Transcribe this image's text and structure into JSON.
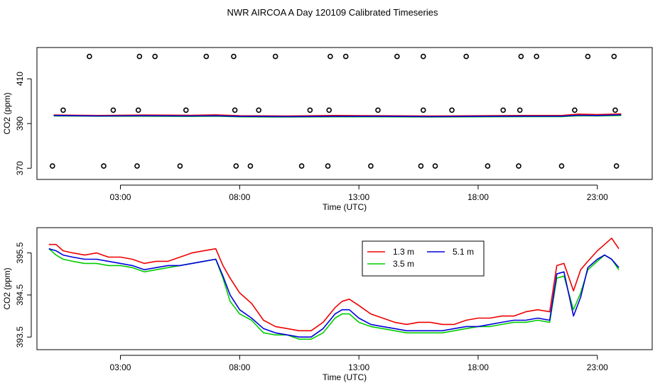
{
  "figure": {
    "title": "NWR AIRCOA A  Day 120109  Calibrated Timeseries"
  },
  "chart_data": [
    {
      "type": "line",
      "title": "",
      "xlabel": "Time (UTC)",
      "ylabel": "CO2 (ppm)",
      "xlim": [
        -0.5,
        25.3
      ],
      "ylim": [
        365,
        424
      ],
      "x_ticks": [
        {
          "value": 3,
          "label": "03:00"
        },
        {
          "value": 8,
          "label": "08:00"
        },
        {
          "value": 13,
          "label": "13:00"
        },
        {
          "value": 18,
          "label": "18:00"
        },
        {
          "value": 23,
          "label": "23:00"
        }
      ],
      "y_ticks": [
        {
          "value": 370,
          "label": "370"
        },
        {
          "value": 390,
          "label": "390"
        },
        {
          "value": 410,
          "label": "410"
        }
      ],
      "series": [
        {
          "name": "1.3 m",
          "color": "#ee0000",
          "x": [
            0.2,
            2,
            4,
            6,
            7,
            8,
            10,
            12,
            14,
            16,
            18,
            20,
            21.5,
            22.2,
            23,
            24
          ],
          "values": [
            393.8,
            393.6,
            393.8,
            393.7,
            393.9,
            393.5,
            393.4,
            393.6,
            393.5,
            393.4,
            393.5,
            393.6,
            393.6,
            394.2,
            394.0,
            394.3
          ]
        },
        {
          "name": "3.5 m",
          "color": "#00cc00",
          "x": [
            0.2,
            2,
            4,
            6,
            7,
            8,
            10,
            12,
            14,
            16,
            18,
            20,
            21.5,
            22.2,
            23,
            24
          ],
          "values": [
            393.4,
            393.3,
            393.3,
            393.2,
            393.3,
            393.0,
            392.9,
            393.0,
            393.0,
            392.9,
            393.0,
            393.1,
            393.1,
            393.5,
            393.4,
            393.6
          ]
        },
        {
          "name": "5.1 m",
          "color": "#0000dd",
          "x": [
            0.2,
            2,
            4,
            6,
            7,
            8,
            10,
            12,
            14,
            16,
            18,
            20,
            21.5,
            22.2,
            23,
            24
          ],
          "values": [
            393.6,
            393.4,
            393.5,
            393.4,
            393.5,
            393.2,
            393.1,
            393.2,
            393.2,
            393.1,
            393.2,
            393.3,
            393.3,
            393.7,
            393.6,
            393.9
          ]
        }
      ],
      "calibration_points": [
        {
          "x": 1.7,
          "y": 420
        },
        {
          "x": 3.8,
          "y": 420
        },
        {
          "x": 4.45,
          "y": 420
        },
        {
          "x": 6.6,
          "y": 420
        },
        {
          "x": 7.75,
          "y": 420
        },
        {
          "x": 9.5,
          "y": 420
        },
        {
          "x": 11.8,
          "y": 420
        },
        {
          "x": 12.45,
          "y": 420
        },
        {
          "x": 14.6,
          "y": 420
        },
        {
          "x": 15.7,
          "y": 420
        },
        {
          "x": 17.5,
          "y": 420
        },
        {
          "x": 19.8,
          "y": 420
        },
        {
          "x": 20.45,
          "y": 420
        },
        {
          "x": 22.6,
          "y": 420
        },
        {
          "x": 23.7,
          "y": 420
        },
        {
          "x": 0.6,
          "y": 396
        },
        {
          "x": 2.7,
          "y": 396
        },
        {
          "x": 3.75,
          "y": 396
        },
        {
          "x": 5.75,
          "y": 396
        },
        {
          "x": 7.8,
          "y": 396
        },
        {
          "x": 8.8,
          "y": 396
        },
        {
          "x": 10.95,
          "y": 396
        },
        {
          "x": 11.75,
          "y": 396
        },
        {
          "x": 13.8,
          "y": 396
        },
        {
          "x": 15.7,
          "y": 396
        },
        {
          "x": 16.9,
          "y": 396
        },
        {
          "x": 19.05,
          "y": 396
        },
        {
          "x": 19.75,
          "y": 396
        },
        {
          "x": 22.05,
          "y": 396
        },
        {
          "x": 23.75,
          "y": 396
        },
        {
          "x": 0.15,
          "y": 371
        },
        {
          "x": 2.3,
          "y": 371
        },
        {
          "x": 3.7,
          "y": 371
        },
        {
          "x": 5.5,
          "y": 371
        },
        {
          "x": 7.85,
          "y": 371
        },
        {
          "x": 8.45,
          "y": 371
        },
        {
          "x": 10.6,
          "y": 371
        },
        {
          "x": 11.7,
          "y": 371
        },
        {
          "x": 13.5,
          "y": 371
        },
        {
          "x": 15.6,
          "y": 371
        },
        {
          "x": 16.2,
          "y": 371
        },
        {
          "x": 18.4,
          "y": 371
        },
        {
          "x": 19.7,
          "y": 371
        },
        {
          "x": 21.5,
          "y": 371
        },
        {
          "x": 23.8,
          "y": 371
        }
      ]
    },
    {
      "type": "line",
      "title": "",
      "xlabel": "Time (UTC)",
      "ylabel": "CO2 (ppm)",
      "xlim": [
        -0.5,
        25.3
      ],
      "ylim": [
        393.2,
        396.1
      ],
      "x_ticks": [
        {
          "value": 3,
          "label": "03:00"
        },
        {
          "value": 8,
          "label": "08:00"
        },
        {
          "value": 13,
          "label": "13:00"
        },
        {
          "value": 18,
          "label": "18:00"
        },
        {
          "value": 23,
          "label": "23:00"
        }
      ],
      "y_ticks": [
        {
          "value": 393.5,
          "label": "393.5"
        },
        {
          "value": 394.5,
          "label": "394.5"
        },
        {
          "value": 395.5,
          "label": "395.5"
        }
      ],
      "legend": {
        "position": "top-right",
        "entries": [
          "1.3 m",
          "5.1 m",
          "3.5 m"
        ]
      },
      "series": [
        {
          "name": "1.3 m",
          "color": "#ee0000",
          "x": [
            0.0,
            0.3,
            0.6,
            1.0,
            1.5,
            2.0,
            2.5,
            3.0,
            3.5,
            4.0,
            4.5,
            5.0,
            5.5,
            6.0,
            6.5,
            7.0,
            7.3,
            7.6,
            8.0,
            8.5,
            9.0,
            9.5,
            10.0,
            10.5,
            11.0,
            11.5,
            12.0,
            12.3,
            12.6,
            13.0,
            13.5,
            14.0,
            14.5,
            15.0,
            15.5,
            16.0,
            16.5,
            17.0,
            17.5,
            18.0,
            18.5,
            19.0,
            19.5,
            20.0,
            20.5,
            21.0,
            21.3,
            21.6,
            22.0,
            22.3,
            22.6,
            23.0,
            23.3,
            23.6,
            23.9
          ],
          "values": [
            395.7,
            395.7,
            395.55,
            395.5,
            395.45,
            395.5,
            395.4,
            395.4,
            395.35,
            395.25,
            395.3,
            395.3,
            395.4,
            395.5,
            395.55,
            395.6,
            395.2,
            394.9,
            394.55,
            394.3,
            393.9,
            393.75,
            393.7,
            393.65,
            393.65,
            393.85,
            394.2,
            394.35,
            394.4,
            394.25,
            394.05,
            393.95,
            393.85,
            393.8,
            393.85,
            393.85,
            393.8,
            393.8,
            393.9,
            393.95,
            393.95,
            394.0,
            394.0,
            394.1,
            394.15,
            394.1,
            395.2,
            395.25,
            394.6,
            395.1,
            395.3,
            395.55,
            395.7,
            395.85,
            395.6
          ]
        },
        {
          "name": "3.5 m",
          "color": "#00cc00",
          "x": [
            0.0,
            0.3,
            0.6,
            1.0,
            1.5,
            2.0,
            2.5,
            3.0,
            3.5,
            4.0,
            4.5,
            5.0,
            5.5,
            6.0,
            6.5,
            7.0,
            7.3,
            7.6,
            8.0,
            8.5,
            9.0,
            9.5,
            10.0,
            10.5,
            11.0,
            11.5,
            12.0,
            12.3,
            12.6,
            13.0,
            13.5,
            14.0,
            14.5,
            15.0,
            15.5,
            16.0,
            16.5,
            17.0,
            17.5,
            18.0,
            18.5,
            19.0,
            19.5,
            20.0,
            20.5,
            21.0,
            21.3,
            21.6,
            22.0,
            22.3,
            22.6,
            23.0,
            23.3,
            23.6,
            23.9
          ],
          "values": [
            395.6,
            395.45,
            395.35,
            395.3,
            395.25,
            395.25,
            395.2,
            395.2,
            395.15,
            395.05,
            395.1,
            395.15,
            395.2,
            395.25,
            395.3,
            395.35,
            394.9,
            394.35,
            394.05,
            393.9,
            393.6,
            393.55,
            393.55,
            393.45,
            393.45,
            393.6,
            393.95,
            394.05,
            394.05,
            393.85,
            393.75,
            393.7,
            393.65,
            393.6,
            393.6,
            393.6,
            393.6,
            393.65,
            393.7,
            393.75,
            393.75,
            393.8,
            393.85,
            393.85,
            393.9,
            393.85,
            394.9,
            394.95,
            394.15,
            394.55,
            395.1,
            395.3,
            395.45,
            395.35,
            395.1
          ]
        },
        {
          "name": "5.1 m",
          "color": "#0000dd",
          "x": [
            0.0,
            0.3,
            0.6,
            1.0,
            1.5,
            2.0,
            2.5,
            3.0,
            3.5,
            4.0,
            4.5,
            5.0,
            5.5,
            6.0,
            6.5,
            7.0,
            7.3,
            7.6,
            8.0,
            8.5,
            9.0,
            9.5,
            10.0,
            10.5,
            11.0,
            11.5,
            12.0,
            12.3,
            12.6,
            13.0,
            13.5,
            14.0,
            14.5,
            15.0,
            15.5,
            16.0,
            16.5,
            17.0,
            17.5,
            18.0,
            18.5,
            19.0,
            19.5,
            20.0,
            20.5,
            21.0,
            21.3,
            21.6,
            22.0,
            22.3,
            22.6,
            23.0,
            23.3,
            23.6,
            23.9
          ],
          "values": [
            395.6,
            395.55,
            395.45,
            395.4,
            395.35,
            395.35,
            395.3,
            395.25,
            395.2,
            395.1,
            395.15,
            395.2,
            395.2,
            395.25,
            395.3,
            395.35,
            394.95,
            394.5,
            394.15,
            393.95,
            393.7,
            393.6,
            393.55,
            393.5,
            393.5,
            393.7,
            394.05,
            394.15,
            394.15,
            393.95,
            393.8,
            393.75,
            393.7,
            393.65,
            393.65,
            393.65,
            393.65,
            393.7,
            393.75,
            393.75,
            393.8,
            393.85,
            393.9,
            393.9,
            393.95,
            393.9,
            395.0,
            395.05,
            394.0,
            394.45,
            395.15,
            395.35,
            395.45,
            395.35,
            395.15
          ]
        }
      ]
    }
  ]
}
